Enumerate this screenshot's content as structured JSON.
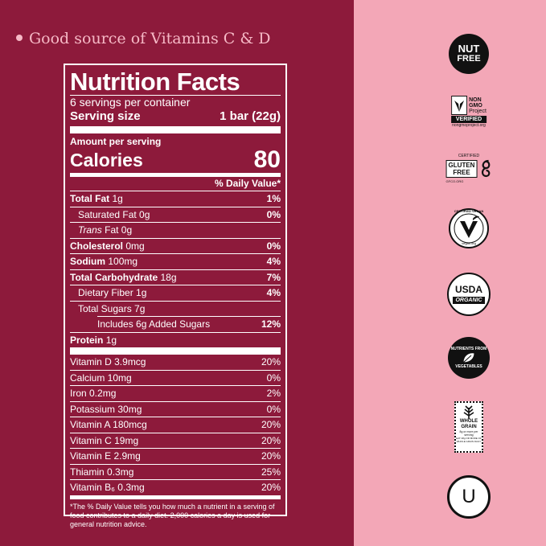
{
  "colors": {
    "left_bg": "#8d1a3b",
    "right_bg": "#f3a7b7",
    "accent_text": "#f6b9c6"
  },
  "headline": "Good source of Vitamins C & D",
  "label": {
    "title": "Nutrition Facts",
    "servings_per_container": "6 servings per container",
    "serving_size_label": "Serving size",
    "serving_size_value": "1 bar (22g)",
    "amount_per_serving": "Amount per serving",
    "calories_label": "Calories",
    "calories_value": "80",
    "daily_value_header": "% Daily Value*",
    "total_fat_label": "Total Fat",
    "total_fat_amount": "1g",
    "total_fat_dv": "1%",
    "sat_fat": "Saturated Fat 0g",
    "sat_fat_dv": "0%",
    "trans_word": "Trans",
    "trans_rest": " Fat 0g",
    "cholesterol_label": "Cholesterol",
    "cholesterol_amount": "0mg",
    "cholesterol_dv": "0%",
    "sodium_label": "Sodium",
    "sodium_amount": "100mg",
    "sodium_dv": "4%",
    "carb_label": "Total Carbohydrate",
    "carb_amount": "18g",
    "carb_dv": "7%",
    "fiber": "Dietary Fiber 1g",
    "fiber_dv": "4%",
    "sugars": "Total Sugars 7g",
    "added_sugars": "Includes 6g Added Sugars",
    "added_sugars_dv": "12%",
    "protein_label": "Protein",
    "protein_amount": "1g",
    "vitamins": [
      {
        "name": "Vitamin D 3.9mcg",
        "dv": "20%"
      },
      {
        "name": "Calcium 10mg",
        "dv": "0%"
      },
      {
        "name": "Iron 0.2mg",
        "dv": "2%"
      },
      {
        "name": "Potassium 30mg",
        "dv": "0%"
      },
      {
        "name": "Vitamin A 180mcg",
        "dv": "20%"
      },
      {
        "name": "Vitamin C 19mg",
        "dv": "20%"
      },
      {
        "name": "Vitamin E 2.9mg",
        "dv": "20%"
      },
      {
        "name": "Thiamin 0.3mg",
        "dv": "25%"
      },
      {
        "name": "Vitamin B₆ 0.3mg",
        "dv": "20%"
      }
    ],
    "footnote": "*The % Daily Value tells you how much a nutrient in a serving of food contributes to a daily diet. 2,000 calories a day is used for general nutrition advice."
  },
  "badges": {
    "nut_free_line1": "NUT",
    "nut_free_line2": "FREE",
    "non_gmo_line1": "NON",
    "non_gmo_line2": "GMO",
    "non_gmo_line3": "Project",
    "non_gmo_verified": "VERIFIED",
    "non_gmo_url": "nongmoproject.org",
    "gluten_certified": "CERTIFIED",
    "gluten_line1": "GLUTEN",
    "gluten_line2": "FREE",
    "gluten_url": "GFCO.ORG",
    "vegan_top": "CERTIFIED VEGAN",
    "vegan_bottom": "vegan.org",
    "usda_line1": "USDA",
    "usda_line2": "ORGANIC",
    "nutrients_top": "NUTRIENTS FROM",
    "nutrients_bottom": "VEGETABLES",
    "whole_grain_line1": "WHOLE",
    "whole_grain_line2": "GRAIN",
    "whole_grain_small": "8g or more per serving",
    "whole_grain_foot": "EAT 48g OR MORE OF WHOLE GRAIN DAILY",
    "kosher_symbol": "U"
  }
}
